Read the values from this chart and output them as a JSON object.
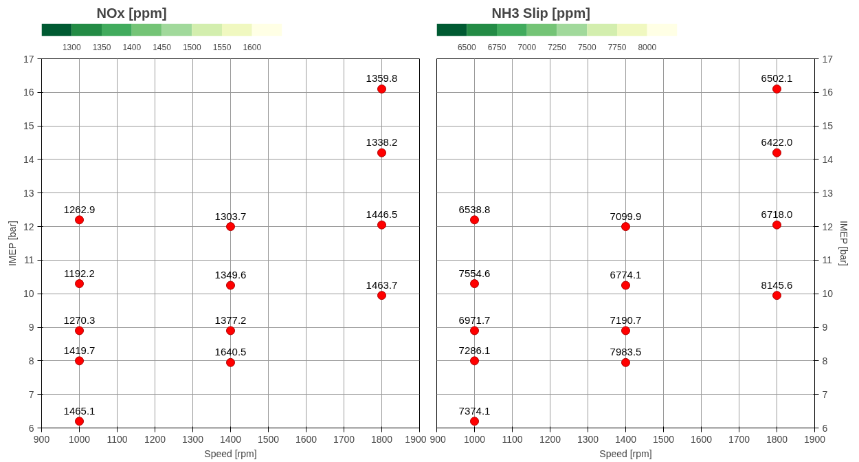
{
  "chart_data": [
    {
      "type": "scatter",
      "title": "NOx [ppm]",
      "xlabel": "Speed [rpm]",
      "ylabel": "IMEP [bar]",
      "xlim": [
        900,
        1900
      ],
      "xticks": [
        900,
        1000,
        1100,
        1200,
        1300,
        1400,
        1500,
        1600,
        1700,
        1800,
        1900
      ],
      "ylim": [
        6,
        17
      ],
      "yticks": [
        6,
        7,
        8,
        9,
        10,
        11,
        12,
        13,
        14,
        15,
        16,
        17
      ],
      "grid": true,
      "marker": "circle",
      "clim": [
        1250,
        1650
      ],
      "cticks": [
        1300,
        1350,
        1400,
        1450,
        1500,
        1550,
        1600
      ],
      "colors": [
        "#005a32",
        "#238b45",
        "#41ab5d",
        "#74c476",
        "#a1d99b",
        "#d3eeae",
        "#f0f8c0",
        "#ffffe5"
      ],
      "series": [
        {
          "color": "#ff0000",
          "x": [
            1000,
            1000,
            1000,
            1000,
            1000,
            1400,
            1400,
            1400,
            1400,
            1800,
            1800,
            1800,
            1800
          ],
          "values": [
            12.2,
            10.3,
            8.9,
            8.0,
            6.2,
            12.0,
            10.25,
            8.9,
            7.95,
            16.1,
            14.2,
            12.05,
            9.95
          ]
        }
      ],
      "annotations": [
        {
          "text": "1262.9",
          "x": 1000,
          "y": 12.2
        },
        {
          "text": "1192.2",
          "x": 1000,
          "y": 10.3
        },
        {
          "text": "1270.3",
          "x": 1000,
          "y": 8.9
        },
        {
          "text": "1419.7",
          "x": 1000,
          "y": 8.0
        },
        {
          "text": "1465.1",
          "x": 1000,
          "y": 6.2
        },
        {
          "text": "1303.7",
          "x": 1400,
          "y": 12.0
        },
        {
          "text": "1349.6",
          "x": 1400,
          "y": 10.25
        },
        {
          "text": "1377.2",
          "x": 1400,
          "y": 8.9
        },
        {
          "text": "1640.5",
          "x": 1400,
          "y": 7.95
        },
        {
          "text": "1359.8",
          "x": 1800,
          "y": 16.1
        },
        {
          "text": "1338.2",
          "x": 1800,
          "y": 14.2
        },
        {
          "text": "1446.5",
          "x": 1800,
          "y": 12.05
        },
        {
          "text": "1463.7",
          "x": 1800,
          "y": 9.95
        }
      ]
    },
    {
      "type": "scatter",
      "title": "NH3 Slip [ppm]",
      "xlabel": "Speed [rpm]",
      "ylabel": "IMEP [bar]",
      "xlim": [
        900,
        1900
      ],
      "xticks": [
        900,
        1000,
        1100,
        1200,
        1300,
        1400,
        1500,
        1600,
        1700,
        1800,
        1900
      ],
      "ylim": [
        6,
        17
      ],
      "yticks": [
        6,
        7,
        8,
        9,
        10,
        11,
        12,
        13,
        14,
        15,
        16,
        17
      ],
      "grid": true,
      "marker": "circle",
      "clim": [
        6250,
        8250
      ],
      "cticks": [
        6500,
        6750,
        7000,
        7250,
        7500,
        7750,
        8000
      ],
      "colors": [
        "#005a32",
        "#238b45",
        "#41ab5d",
        "#74c476",
        "#a1d99b",
        "#d3eeae",
        "#f0f8c0",
        "#ffffe5"
      ],
      "series": [
        {
          "color": "#ff0000",
          "x": [
            1000,
            1000,
            1000,
            1000,
            1000,
            1400,
            1400,
            1400,
            1400,
            1800,
            1800,
            1800,
            1800
          ],
          "values": [
            12.2,
            10.3,
            8.9,
            8.0,
            6.2,
            12.0,
            10.25,
            8.9,
            7.95,
            16.1,
            14.2,
            12.05,
            9.95
          ]
        }
      ],
      "annotations": [
        {
          "text": "6538.8",
          "x": 1000,
          "y": 12.2
        },
        {
          "text": "7554.6",
          "x": 1000,
          "y": 10.3
        },
        {
          "text": "6971.7",
          "x": 1000,
          "y": 8.9
        },
        {
          "text": "7286.1",
          "x": 1000,
          "y": 8.0
        },
        {
          "text": "7374.1",
          "x": 1000,
          "y": 6.2
        },
        {
          "text": "7099.9",
          "x": 1400,
          "y": 12.0
        },
        {
          "text": "6774.1",
          "x": 1400,
          "y": 10.25
        },
        {
          "text": "7190.7",
          "x": 1400,
          "y": 8.9
        },
        {
          "text": "7983.5",
          "x": 1400,
          "y": 7.95
        },
        {
          "text": "6502.1",
          "x": 1800,
          "y": 16.1
        },
        {
          "text": "6422.0",
          "x": 1800,
          "y": 14.2
        },
        {
          "text": "6718.0",
          "x": 1800,
          "y": 12.05
        },
        {
          "text": "8145.6",
          "x": 1800,
          "y": 9.95
        }
      ]
    }
  ]
}
